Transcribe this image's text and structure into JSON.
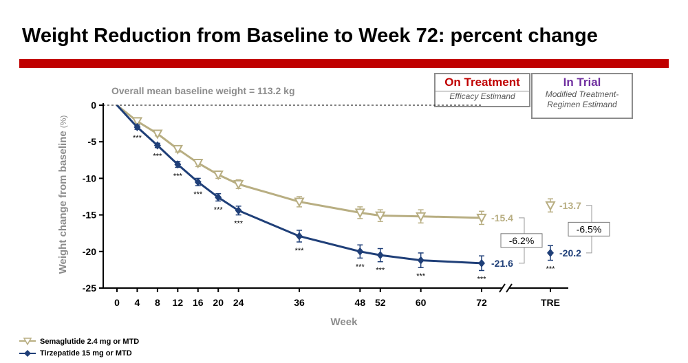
{
  "header": {
    "title": "Weight Reduction from Baseline to Week 72: percent change"
  },
  "estimands": {
    "on_treatment": {
      "title": "On Treatment",
      "subtitle": "Efficacy Estimand"
    },
    "in_trial": {
      "title": "In Trial",
      "subtitle_line1": "Modified Treatment-",
      "subtitle_line2": "Regimen Estimand"
    }
  },
  "colors": {
    "semaglutide": "#b8ae82",
    "tirzepatide": "#1f3f78",
    "accent": "#c00000",
    "axis_label": "#8c8c8c"
  },
  "chart_data": {
    "type": "line",
    "title": "Weight Reduction from Baseline to Week 72: percent change",
    "annotation": "Overall mean baseline weight = 113.2 kg",
    "xlabel": "Week",
    "ylabel": "Weight change from baseline",
    "ylabel_unit": "(%)",
    "ylim": [
      -25,
      0
    ],
    "yticks": [
      "0",
      "-5",
      "-10",
      "-15",
      "-20",
      "-25"
    ],
    "ytick_values": [
      0,
      -5,
      -10,
      -15,
      -20,
      -25
    ],
    "xticks": [
      "0",
      "4",
      "8",
      "12",
      "16",
      "20",
      "24",
      "36",
      "48",
      "52",
      "60",
      "72"
    ],
    "xtick_values": [
      0,
      4,
      8,
      12,
      16,
      20,
      24,
      36,
      48,
      52,
      60,
      72
    ],
    "tre_label": "TRE",
    "x": [
      0,
      4,
      8,
      12,
      16,
      20,
      24,
      36,
      48,
      52,
      60,
      72
    ],
    "series": [
      {
        "name": "Semaglutide 2.4 mg or MTD",
        "values": [
          0,
          -2.2,
          -3.9,
          -6.0,
          -7.9,
          -9.5,
          -10.8,
          -13.2,
          -14.7,
          -15.1,
          -15.2,
          -15.4
        ],
        "errors": [
          0,
          0.3,
          0.3,
          0.4,
          0.5,
          0.5,
          0.6,
          0.7,
          0.8,
          0.8,
          0.9,
          0.9
        ],
        "end_label": "-15.4",
        "tre_value": -13.7,
        "tre_error": 0.9,
        "tre_label": "-13.7"
      },
      {
        "name": "Tirzepatide 15 mg or MTD",
        "values": [
          0,
          -3.0,
          -5.5,
          -8.1,
          -10.5,
          -12.6,
          -14.4,
          -17.9,
          -20.0,
          -20.5,
          -21.2,
          -21.6
        ],
        "errors": [
          0,
          0.3,
          0.3,
          0.4,
          0.5,
          0.5,
          0.6,
          0.8,
          0.9,
          0.9,
          1.0,
          1.0
        ],
        "end_label": "-21.6",
        "tre_value": -20.2,
        "tre_error": 1.0,
        "tre_label": "-20.2"
      }
    ],
    "significance": [
      "",
      "***",
      "***",
      "***",
      "***",
      "***",
      "***",
      "***",
      "***",
      "***",
      "***",
      "***"
    ],
    "tre_significance": "***",
    "differences": [
      {
        "label": "-6.2%",
        "context": "week 72"
      },
      {
        "label": "-6.5%",
        "context": "TRE"
      }
    ]
  }
}
